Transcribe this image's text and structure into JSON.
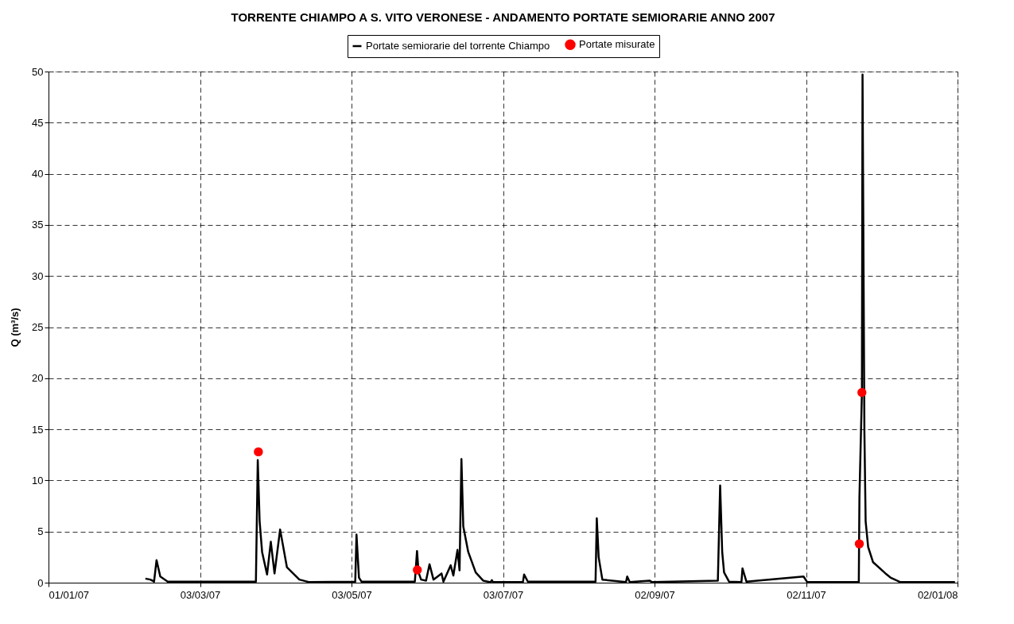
{
  "chart_data": {
    "type": "line",
    "title": "TORRENTE CHIAMPO A S. VITO VERONESE - ANDAMENTO PORTATE SEMIORARIE ANNO 2007",
    "ylabel": "Q (m³/s)",
    "xlim": [
      "2007-01-01",
      "2008-01-02"
    ],
    "xticks": [
      {
        "value": "2007-01-01",
        "label": "01/01/07"
      },
      {
        "value": "2007-03-03",
        "label": "03/03/07"
      },
      {
        "value": "2007-05-03",
        "label": "03/05/07"
      },
      {
        "value": "2007-07-03",
        "label": "03/07/07"
      },
      {
        "value": "2007-09-02",
        "label": "02/09/07"
      },
      {
        "value": "2007-11-02",
        "label": "02/11/07"
      },
      {
        "value": "2008-01-02",
        "label": "02/01/08"
      }
    ],
    "ylim": [
      0,
      50
    ],
    "yticks": [
      0,
      5,
      10,
      15,
      20,
      25,
      30,
      35,
      40,
      45,
      50
    ],
    "grid": true,
    "legend": "top",
    "line_style": "solid",
    "series": [
      {
        "name": "Portate semiorarie del torrente Chiampo",
        "color": "#000000",
        "x": [
          "2007-02-09",
          "2007-02-11",
          "2007-02-12T12:00",
          "2007-02-13T12:00",
          "2007-02-15",
          "2007-02-18",
          "2007-03-25T12:00",
          "2007-03-26T06:00",
          "2007-03-27",
          "2007-03-28",
          "2007-03-30",
          "2007-03-31T12:00",
          "2007-04-02",
          "2007-04-04T06:00",
          "2007-04-07",
          "2007-04-12",
          "2007-04-16",
          "2007-05-04T12:00",
          "2007-05-05",
          "2007-05-06",
          "2007-05-07",
          "2007-05-28T12:00",
          "2007-05-29T09:00",
          "2007-05-30",
          "2007-05-31",
          "2007-06-02",
          "2007-06-03T10:00",
          "2007-06-05",
          "2007-06-08T06:00",
          "2007-06-09",
          "2007-06-11T22:00",
          "2007-06-13",
          "2007-06-14T16:00",
          "2007-06-15T12:00",
          "2007-06-16T06:00",
          "2007-06-17",
          "2007-06-19",
          "2007-06-22",
          "2007-06-25",
          "2007-06-28",
          "2007-06-28T12:00",
          "2007-06-29",
          "2007-07-11",
          "2007-07-11T12:00",
          "2007-07-13",
          "2007-08-09T06:00",
          "2007-08-09T18:00",
          "2007-08-10T12:00",
          "2007-08-12",
          "2007-08-21T12:00",
          "2007-08-22",
          "2007-08-23",
          "2007-08-31",
          "2007-09-01",
          "2007-09-27T12:00",
          "2007-09-28T10:00",
          "2007-09-29T06:00",
          "2007-09-30",
          "2007-10-02",
          "2007-10-07",
          "2007-10-07T10:00",
          "2007-10-09",
          "2007-11-01",
          "2007-11-02T12:00",
          "2007-11-23T06:00",
          "2007-11-23T12:00",
          "2007-11-24T12:00",
          "2007-11-24T18:00",
          "2007-11-25T12:00",
          "2007-11-26",
          "2007-11-27",
          "2007-11-29",
          "2007-12-04",
          "2007-12-06",
          "2007-12-10",
          "2007-12-31T23:00"
        ],
        "values": [
          0.4,
          0.3,
          0.1,
          2.2,
          0.6,
          0.1,
          0.1,
          12.0,
          6.0,
          3.0,
          0.8,
          4.0,
          0.9,
          5.2,
          1.5,
          0.3,
          0.05,
          0.1,
          4.7,
          0.5,
          0.1,
          0.1,
          3.1,
          1.0,
          0.3,
          0.2,
          1.8,
          0.3,
          0.9,
          0.1,
          1.7,
          0.7,
          3.2,
          1.2,
          12.1,
          5.5,
          3.0,
          1.0,
          0.2,
          0.05,
          0.25,
          0.05,
          0.05,
          0.8,
          0.1,
          0.1,
          6.3,
          2.5,
          0.3,
          0.05,
          0.6,
          0.05,
          0.2,
          0.05,
          0.2,
          9.5,
          3.0,
          1.0,
          0.1,
          0.05,
          1.4,
          0.1,
          0.6,
          0.05,
          0.05,
          8.3,
          18.6,
          49.7,
          14.8,
          6.0,
          3.5,
          2.0,
          0.9,
          0.5,
          0.05,
          0.05
        ]
      },
      {
        "name": "Portate misurate",
        "type": "scatter",
        "color": "#ff0000",
        "marker": "circle",
        "x": [
          "2007-03-26T12:00",
          "2007-05-29T12:00",
          "2007-11-23T11:00",
          "2007-11-24T12:00"
        ],
        "values": [
          12.8,
          1.25,
          3.8,
          18.6
        ]
      }
    ]
  }
}
